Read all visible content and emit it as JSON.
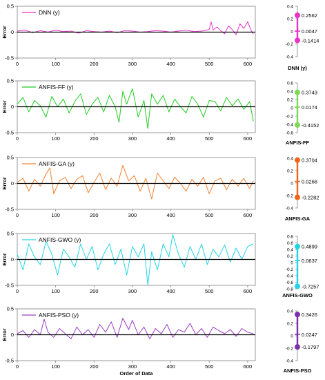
{
  "chart_data": [
    {
      "type": "line",
      "legend": "DNN (y)",
      "color": "#e633c8",
      "ylabel": "Error",
      "xlabel": "",
      "xlim": [
        0,
        620
      ],
      "xticks": [
        0,
        100,
        200,
        300,
        400,
        500,
        600
      ],
      "ylim": [
        -0.5,
        0.5
      ],
      "yticks": [
        -0.5,
        0,
        0.5
      ],
      "x": [
        0,
        20,
        40,
        60,
        80,
        100,
        120,
        140,
        160,
        180,
        200,
        220,
        240,
        260,
        280,
        300,
        320,
        340,
        360,
        380,
        400,
        420,
        440,
        460,
        480,
        500,
        505,
        510,
        520,
        530,
        540,
        550,
        560,
        570,
        580,
        590,
        600,
        610,
        615
      ],
      "y": [
        0.02,
        0.04,
        -0.01,
        0.03,
        0.0,
        0.04,
        0.01,
        0.02,
        -0.02,
        0.03,
        0.01,
        0.0,
        0.02,
        -0.01,
        0.03,
        0.02,
        0.0,
        0.01,
        0.03,
        0.02,
        0.0,
        0.02,
        0.04,
        0.01,
        0.02,
        0.05,
        0.2,
        0.04,
        0.1,
        0.03,
        -0.03,
        0.12,
        0.05,
        -0.05,
        0.16,
        0.07,
        0.2,
        0.02,
        -0.04
      ]
    },
    {
      "type": "line",
      "legend": "ANFIS-FF (y)",
      "color": "#22cc22",
      "ylabel": "Error",
      "xlabel": "",
      "xlim": [
        0,
        620
      ],
      "xticks": [
        0,
        100,
        200,
        300,
        400,
        500,
        600
      ],
      "ylim": [
        -0.5,
        0.5
      ],
      "yticks": [
        -0.5,
        0,
        0.5
      ],
      "x": [
        0,
        15,
        30,
        45,
        60,
        75,
        90,
        105,
        120,
        135,
        150,
        165,
        180,
        195,
        210,
        225,
        240,
        255,
        265,
        275,
        285,
        300,
        315,
        330,
        340,
        350,
        365,
        380,
        395,
        410,
        425,
        440,
        455,
        470,
        485,
        500,
        515,
        530,
        545,
        560,
        575,
        590,
        605,
        615
      ],
      "y": [
        0.05,
        0.18,
        -0.1,
        0.12,
        0.02,
        -0.2,
        0.2,
        0.0,
        0.15,
        -0.12,
        0.1,
        0.25,
        -0.15,
        0.05,
        0.18,
        -0.1,
        0.22,
        0.0,
        -0.3,
        0.3,
        0.05,
        0.35,
        -0.2,
        0.12,
        -0.42,
        0.25,
        0.05,
        0.22,
        -0.1,
        0.15,
        0.0,
        -0.12,
        0.2,
        0.05,
        -0.2,
        0.12,
        0.1,
        -0.08,
        0.18,
        0.02,
        0.15,
        -0.05,
        0.1,
        -0.28
      ]
    },
    {
      "type": "line",
      "legend": "ANFIS-GA (y)",
      "color": "#f08030",
      "ylabel": "Error",
      "xlabel": "",
      "xlim": [
        0,
        620
      ],
      "xticks": [
        0,
        100,
        200,
        300,
        400,
        500,
        600
      ],
      "ylim": [
        -0.5,
        0.5
      ],
      "yticks": [
        -0.5,
        0,
        0.5
      ],
      "x": [
        0,
        15,
        30,
        45,
        60,
        75,
        85,
        95,
        110,
        125,
        140,
        155,
        170,
        185,
        200,
        215,
        230,
        245,
        260,
        275,
        290,
        305,
        320,
        335,
        350,
        365,
        380,
        395,
        410,
        425,
        440,
        455,
        470,
        485,
        500,
        515,
        530,
        545,
        560,
        575,
        590,
        605,
        615
      ],
      "y": [
        0.02,
        0.1,
        -0.15,
        0.08,
        -0.05,
        0.18,
        0.3,
        -0.2,
        0.05,
        0.12,
        -0.1,
        0.08,
        0.15,
        -0.18,
        0.02,
        0.2,
        -0.12,
        0.1,
        -0.05,
        0.35,
        0.05,
        0.15,
        -0.15,
        0.1,
        -0.3,
        0.2,
        0.05,
        -0.1,
        0.12,
        0.0,
        -0.15,
        0.08,
        -0.05,
        0.12,
        -0.2,
        0.05,
        0.1,
        -0.12,
        0.08,
        -0.05,
        0.1,
        -0.1,
        0.05
      ]
    },
    {
      "type": "line",
      "legend": "ANFIS-GWO (y)",
      "color": "#22d4e6",
      "ylabel": "Error",
      "xlabel": "",
      "xlim": [
        0,
        620
      ],
      "xticks": [
        0,
        100,
        200,
        300,
        400,
        500,
        600
      ],
      "ylim": [
        -0.5,
        0.5
      ],
      "yticks": [
        -0.5,
        0,
        0.5
      ],
      "x": [
        0,
        15,
        30,
        45,
        60,
        75,
        90,
        105,
        120,
        135,
        150,
        165,
        180,
        195,
        210,
        225,
        240,
        255,
        270,
        285,
        300,
        315,
        330,
        340,
        350,
        365,
        380,
        395,
        405,
        420,
        435,
        450,
        465,
        480,
        495,
        510,
        525,
        540,
        555,
        570,
        585,
        600,
        615
      ],
      "y": [
        0.1,
        -0.2,
        0.3,
        0.05,
        -0.1,
        0.35,
        0.1,
        -0.3,
        0.2,
        0.05,
        -0.15,
        0.3,
        0.0,
        0.25,
        -0.2,
        0.1,
        0.3,
        -0.1,
        0.2,
        -0.3,
        0.25,
        0.05,
        0.3,
        -0.5,
        0.15,
        -0.2,
        0.3,
        0.05,
        0.48,
        0.1,
        -0.15,
        0.25,
        0.0,
        0.3,
        -0.1,
        0.2,
        0.05,
        0.28,
        -0.05,
        0.22,
        0.0,
        0.25,
        0.3
      ]
    },
    {
      "type": "line",
      "legend": "ANFIS-PSO (y)",
      "color": "#9b3dc4",
      "ylabel": "Error",
      "xlabel": "Order of Data",
      "xlim": [
        0,
        620
      ],
      "xticks": [
        0,
        100,
        200,
        300,
        400,
        500,
        600
      ],
      "ylim": [
        -0.5,
        0.5
      ],
      "yticks": [
        -0.5,
        0,
        0.5
      ],
      "x": [
        0,
        15,
        30,
        45,
        60,
        70,
        80,
        95,
        110,
        125,
        140,
        155,
        170,
        185,
        200,
        215,
        230,
        245,
        260,
        275,
        290,
        300,
        315,
        330,
        345,
        360,
        375,
        390,
        405,
        420,
        435,
        450,
        465,
        480,
        495,
        510,
        525,
        540,
        555,
        570,
        585,
        600,
        615
      ],
      "y": [
        0.02,
        0.08,
        -0.05,
        0.1,
        0.0,
        0.3,
        0.05,
        -0.05,
        0.12,
        0.02,
        -0.08,
        0.15,
        0.0,
        0.1,
        -0.05,
        0.2,
        0.05,
        0.25,
        -0.05,
        0.32,
        0.1,
        0.28,
        0.0,
        0.15,
        -0.08,
        0.12,
        0.02,
        0.2,
        -0.05,
        0.1,
        0.05,
        0.22,
        0.0,
        0.12,
        -0.05,
        0.15,
        0.08,
        0.02,
        0.1,
        -0.03,
        0.12,
        0.05,
        0.02
      ]
    }
  ],
  "summary_plots": [
    {
      "name": "DNN (y)",
      "color": "#e633c8",
      "max": 0.2562,
      "mean": 0.0047,
      "min": -0.1414,
      "max_label": "0.2562",
      "mean_label": "0.0047",
      "min_label": "-0.1414",
      "yticks": [
        -0.4,
        -0.2,
        0,
        0.2,
        0.4
      ],
      "ytick_labels": [
        "-0.4",
        "-0.2",
        "0",
        "0.2",
        "0.4"
      ],
      "ylim": [
        -0.4,
        0.4
      ]
    },
    {
      "name": "ANFIS-FF",
      "color": "#7ed957",
      "max": 0.3743,
      "mean": 0.0174,
      "min": -0.4152,
      "max_label": "0.3743",
      "mean_label": "0.0174",
      "min_label": "-0.4152",
      "yticks": [
        -0.6,
        -0.4,
        -0.2,
        0,
        0.2,
        0.4,
        0.6
      ],
      "ytick_labels": [
        "-0.6",
        "-0.4",
        "-0.2",
        "0",
        "0.2",
        "0.4",
        "0.6"
      ],
      "ylim": [
        -0.6,
        0.6
      ]
    },
    {
      "name": "ANFIS-GA",
      "color": "#f06418",
      "max": 0.3704,
      "mean": 0.0268,
      "min": -0.2282,
      "max_label": "0.3704",
      "mean_label": "0.0268",
      "min_label": "-0.2282",
      "yticks": [
        -0.4,
        -0.2,
        0,
        0.2,
        0.4
      ],
      "ytick_labels": [
        "-0.4",
        "-0.2",
        "0",
        "0.2",
        "0.4"
      ],
      "ylim": [
        -0.4,
        0.4
      ]
    },
    {
      "name": "ANFIS-GWO",
      "color": "#22d4e6",
      "max": 0.4899,
      "mean": 0.0637,
      "min": -0.7257,
      "max_label": "0.4899",
      "mean_label": "0.0637",
      "min_label": "-0.7257",
      "yticks": [
        -0.8,
        -0.6,
        -0.4,
        -0.2,
        0,
        0.2,
        0.4,
        0.6,
        0.8
      ],
      "ytick_labels": [
        "-0.8",
        "-0.6",
        "-0.4",
        "-0.2",
        "0",
        "0.2",
        "0.4",
        "0.6",
        "0.8"
      ],
      "ylim": [
        -0.8,
        0.8
      ]
    },
    {
      "name": "ANFIS-PSO",
      "color": "#7b2fa8",
      "max": 0.3426,
      "mean": 0.0247,
      "min": -0.1797,
      "max_label": "0.3426",
      "mean_label": "0.0247",
      "min_label": "-0.1797",
      "yticks": [
        -0.4,
        -0.2,
        0,
        0.2,
        0.4
      ],
      "ytick_labels": [
        "-0.4",
        "-0.2",
        "0",
        "0.2",
        "0.4"
      ],
      "ylim": [
        -0.4,
        0.4
      ]
    }
  ]
}
